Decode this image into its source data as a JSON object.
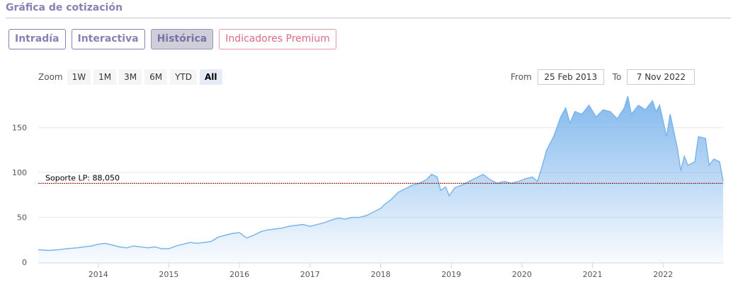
{
  "header": {
    "title": "Gráfica de cotización"
  },
  "tabs": [
    {
      "label": "Intradía"
    },
    {
      "label": "Interactiva"
    },
    {
      "label": "Histórica"
    },
    {
      "label": "Indicadores Premium"
    }
  ],
  "zoom": {
    "label": "Zoom",
    "buttons": [
      "1W",
      "1M",
      "3M",
      "6M",
      "YTD",
      "All"
    ],
    "selected": "All"
  },
  "range": {
    "from_label": "From",
    "from_value": "25 Feb 2013",
    "to_label": "To",
    "to_value": "7 Nov 2022"
  },
  "colors": {
    "line": "#7cb5ec",
    "support": "#8b0000",
    "accent": "#8b80b6",
    "premium": "#e06b82"
  },
  "chart_data": {
    "type": "area",
    "xlabel": "",
    "ylabel": "",
    "ylim": [
      0,
      190
    ],
    "yticks": [
      0,
      50,
      100,
      150
    ],
    "xlim": [
      2013.15,
      2022.85
    ],
    "xticks": [
      2014,
      2015,
      2016,
      2017,
      2018,
      2019,
      2020,
      2021,
      2022
    ],
    "grid": true,
    "support_line": {
      "value": 88.05,
      "label": "Soporte LP: 88,050"
    },
    "series": [
      {
        "x": [
          2013.15,
          2013.3,
          2013.45,
          2013.55,
          2013.7,
          2013.8,
          2013.9,
          2014.0,
          2014.1,
          2014.2,
          2014.3,
          2014.4,
          2014.5,
          2014.6,
          2014.7,
          2014.8,
          2014.9,
          2015.0,
          2015.1,
          2015.2,
          2015.3,
          2015.4,
          2015.5,
          2015.6,
          2015.7,
          2015.8,
          2015.9,
          2016.0,
          2016.1,
          2016.2,
          2016.3,
          2016.4,
          2016.5,
          2016.6,
          2016.7,
          2016.8,
          2016.9,
          2017.0,
          2017.1,
          2017.2,
          2017.3,
          2017.4,
          2017.5,
          2017.6,
          2017.7,
          2017.8,
          2017.9,
          2018.0,
          2018.05,
          2018.15,
          2018.25,
          2018.35,
          2018.45,
          2018.55,
          2018.65,
          2018.72,
          2018.8,
          2018.85,
          2018.92,
          2018.97,
          2019.05,
          2019.15,
          2019.25,
          2019.35,
          2019.45,
          2019.55,
          2019.65,
          2019.75,
          2019.85,
          2019.95,
          2020.05,
          2020.15,
          2020.22,
          2020.28,
          2020.35,
          2020.45,
          2020.55,
          2020.62,
          2020.68,
          2020.75,
          2020.85,
          2020.95,
          2021.05,
          2021.15,
          2021.25,
          2021.35,
          2021.45,
          2021.5,
          2021.55,
          2021.65,
          2021.75,
          2021.85,
          2021.9,
          2021.95,
          2022.05,
          2022.1,
          2022.2,
          2022.25,
          2022.3,
          2022.35,
          2022.45,
          2022.5,
          2022.6,
          2022.65,
          2022.72,
          2022.8,
          2022.85
        ],
        "y": [
          14,
          13,
          14,
          15,
          16,
          17,
          18,
          20,
          21,
          19,
          17,
          16,
          18,
          17,
          16,
          17,
          15,
          15,
          18,
          20,
          22,
          21,
          22,
          23,
          28,
          30,
          32,
          33,
          27,
          30,
          34,
          36,
          37,
          38,
          40,
          41,
          42,
          40,
          42,
          44,
          47,
          49,
          48,
          50,
          50,
          52,
          56,
          60,
          64,
          70,
          78,
          82,
          86,
          88,
          92,
          98,
          95,
          80,
          84,
          74,
          83,
          86,
          90,
          94,
          98,
          92,
          88,
          90,
          88,
          90,
          93,
          95,
          90,
          105,
          125,
          140,
          162,
          172,
          155,
          168,
          165,
          175,
          162,
          170,
          168,
          160,
          172,
          185,
          165,
          175,
          170,
          180,
          168,
          175,
          140,
          165,
          128,
          102,
          118,
          108,
          112,
          140,
          138,
          108,
          115,
          112,
          90
        ]
      }
    ]
  }
}
